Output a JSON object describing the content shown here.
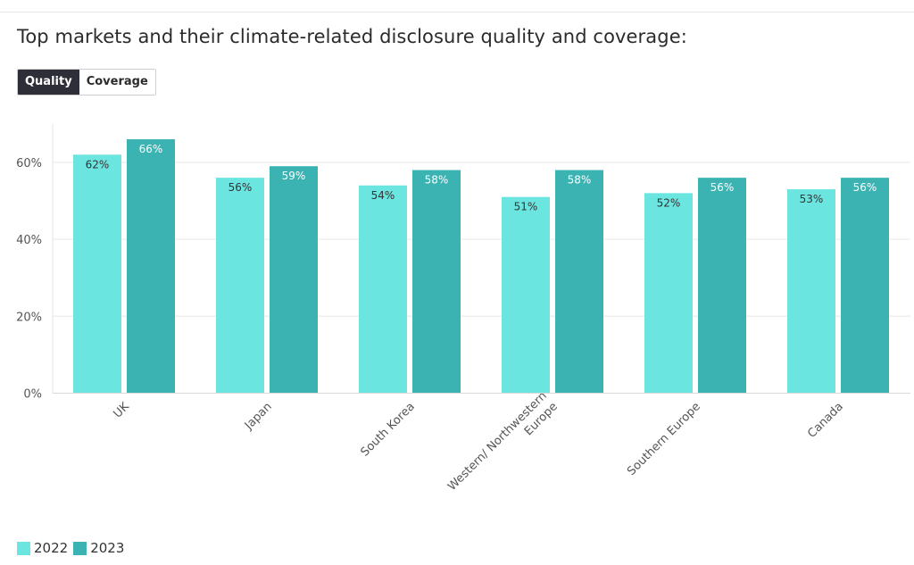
{
  "title": "Top markets and their climate-related disclosure quality and coverage:",
  "toggle": {
    "quality_label": "Quality",
    "coverage_label": "Coverage",
    "active": "Quality"
  },
  "chart_data": {
    "type": "bar",
    "title": "Top markets and their climate-related disclosure quality and coverage:",
    "xlabel": "",
    "ylabel": "",
    "ylim": [
      0,
      70
    ],
    "yticks": [
      0,
      20,
      40,
      60
    ],
    "ytick_labels": [
      "0%",
      "20%",
      "40%",
      "60%"
    ],
    "grid": true,
    "legend_position": "bottom-left",
    "categories": [
      "UK",
      "Japan",
      "South Korea",
      "Western/ Northwestern Europe",
      "Southern Europe",
      "Canada"
    ],
    "category_label_lines": [
      [
        "UK"
      ],
      [
        "Japan"
      ],
      [
        "South Korea"
      ],
      [
        "Western/ Northwestern",
        "Europe"
      ],
      [
        "Southern Europe"
      ],
      [
        "Canada"
      ]
    ],
    "series": [
      {
        "name": "2022",
        "color": "#6ae5e0",
        "values": [
          62,
          56,
          54,
          51,
          52,
          53
        ],
        "labels": [
          "62%",
          "56%",
          "54%",
          "51%",
          "52%",
          "53%"
        ]
      },
      {
        "name": "2023",
        "color": "#3bb3b2",
        "values": [
          66,
          59,
          58,
          58,
          56,
          56
        ],
        "labels": [
          "66%",
          "59%",
          "58%",
          "58%",
          "56%",
          "56%"
        ]
      }
    ]
  }
}
